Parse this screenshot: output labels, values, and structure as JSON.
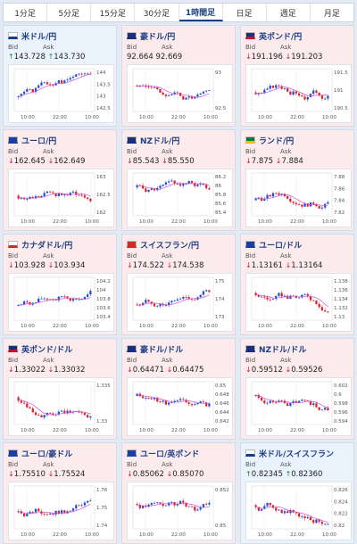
{
  "tabs": [
    "1分足",
    "5分足",
    "15分足",
    "30分足",
    "1時間足",
    "日足",
    "週足",
    "月足"
  ],
  "active_tab": 4,
  "labels": {
    "bid": "Bid",
    "ask": "Ask"
  },
  "colors": {
    "up_card": "#eaf2fc",
    "down_card": "#fcebed",
    "bull": "#1d4fd7",
    "bear": "#e0202a",
    "ma": "#cf4fd6",
    "up_arrow": "#1f8a3a",
    "down_arrow": "#d0192c"
  },
  "cards": [
    {
      "name": "米ドル/円",
      "dir": "up",
      "bid": "143.728",
      "ask": "143.730",
      "flag": "us-flag-icon",
      "ticks": [
        "144",
        "143.5",
        "143",
        "142.5"
      ],
      "times": [
        "10:00",
        "22:00",
        "10:00"
      ],
      "seed": 1,
      "trend": 0.6
    },
    {
      "name": "豪ドル/円",
      "dir": "none",
      "bid": "92.664",
      "ask": "92.669",
      "flag": "au-flag-icon",
      "ticks": [
        "93",
        "92.5"
      ],
      "times": [
        "10:00",
        "22:00",
        "10:00"
      ],
      "seed": 2,
      "trend": -0.4
    },
    {
      "name": "英ポンド/円",
      "dir": "down",
      "bid": "191.196",
      "ask": "191.203",
      "flag": "uk-flag-icon",
      "ticks": [
        "191.5",
        "191",
        "190.5"
      ],
      "times": [
        "10:00",
        "22:00",
        "10:00"
      ],
      "seed": 3,
      "trend": 0.2
    },
    {
      "name": "ユーロ/円",
      "dir": "down",
      "bid": "162.645",
      "ask": "162.649",
      "flag": "eu-flag-icon",
      "ticks": [
        "163",
        "162.5",
        "162"
      ],
      "times": [
        "10:00",
        "22:00",
        "10:00"
      ],
      "seed": 4,
      "trend": 0.1
    },
    {
      "name": "NZドル/円",
      "dir": "down",
      "bid": "85.543",
      "ask": "85.550",
      "flag": "nz-flag-icon",
      "ticks": [
        "86.2",
        "86",
        "85.8",
        "85.6",
        "85.4"
      ],
      "times": [
        "10:00",
        "22:00",
        "10:00"
      ],
      "seed": 5,
      "trend": -0.6
    },
    {
      "name": "ランド/円",
      "dir": "down",
      "bid": "7.875",
      "ask": "7.884",
      "flag": "za-flag-icon",
      "ticks": [
        "7.88",
        "7.86",
        "7.84",
        "7.82"
      ],
      "times": [
        "10:00",
        "22:00",
        "10:00"
      ],
      "seed": 6,
      "trend": 0.5
    },
    {
      "name": "カナダドル/円",
      "dir": "down",
      "bid": "103.928",
      "ask": "103.934",
      "flag": "ca-flag-icon",
      "ticks": [
        "104.2",
        "104",
        "103.8",
        "103.6",
        "103.4"
      ],
      "times": [
        "10:00",
        "22:00",
        "10:00"
      ],
      "seed": 7,
      "trend": 0.6
    },
    {
      "name": "スイスフラン/円",
      "dir": "down",
      "bid": "174.522",
      "ask": "174.538",
      "flag": "ch-flag-icon",
      "ticks": [
        "175",
        "174",
        "173"
      ],
      "times": [
        "10:00",
        "22:00",
        "10:00"
      ],
      "seed": 8,
      "trend": 0.5
    },
    {
      "name": "ユーロ/ドル",
      "dir": "down",
      "bid": "1.13161",
      "ask": "1.13164",
      "flag": "eu-flag-icon",
      "ticks": [
        "1.138",
        "1.136",
        "1.134",
        "1.132",
        "1.13"
      ],
      "times": [
        "10:00",
        "22:00",
        "10:00"
      ],
      "seed": 9,
      "trend": -0.5
    },
    {
      "name": "英ポンド/ドル",
      "dir": "down",
      "bid": "1.33022",
      "ask": "1.33032",
      "flag": "uk-flag-icon",
      "ticks": [
        "1.335",
        "1.33"
      ],
      "times": [
        "10:00",
        "22:00",
        "10:00"
      ],
      "seed": 10,
      "trend": -0.5
    },
    {
      "name": "豪ドル/ドル",
      "dir": "down",
      "bid": "0.64471",
      "ask": "0.64475",
      "flag": "au-flag-icon",
      "ticks": [
        "0.65",
        "0.648",
        "0.646",
        "0.644",
        "0.642"
      ],
      "times": [
        "10:00",
        "22:00",
        "10:00"
      ],
      "seed": 11,
      "trend": -0.6
    },
    {
      "name": "NZドル/ドル",
      "dir": "down",
      "bid": "0.59512",
      "ask": "0.59526",
      "flag": "nz-flag-icon",
      "ticks": [
        "0.602",
        "0.6",
        "0.598",
        "0.596",
        "0.594"
      ],
      "times": [
        "10:00",
        "22:00",
        "10:00"
      ],
      "seed": 12,
      "trend": -0.6
    },
    {
      "name": "ユーロ/豪ドル",
      "dir": "down",
      "bid": "1.75510",
      "ask": "1.75524",
      "flag": "eu-flag-icon",
      "ticks": [
        "1.76",
        "1.75",
        "1.74"
      ],
      "times": [
        "10:00",
        "22:00",
        "10:00"
      ],
      "seed": 13,
      "trend": 0.4
    },
    {
      "name": "ユーロ/英ポンド",
      "dir": "down",
      "bid": "0.85062",
      "ask": "0.85070",
      "flag": "eu-flag-icon",
      "ticks": [
        "0.852",
        "0.85"
      ],
      "times": [
        "10:00",
        "22:00",
        "10:00"
      ],
      "seed": 14,
      "trend": -0.3
    },
    {
      "name": "米ドル/スイスフラン",
      "dir": "up",
      "bid": "0.82345",
      "ask": "0.82360",
      "flag": "us-flag-icon",
      "ticks": [
        "0.826",
        "0.824",
        "0.822",
        "0.82"
      ],
      "times": [
        "10:00",
        "22:00",
        "10:00"
      ],
      "seed": 15,
      "trend": -0.2
    }
  ]
}
